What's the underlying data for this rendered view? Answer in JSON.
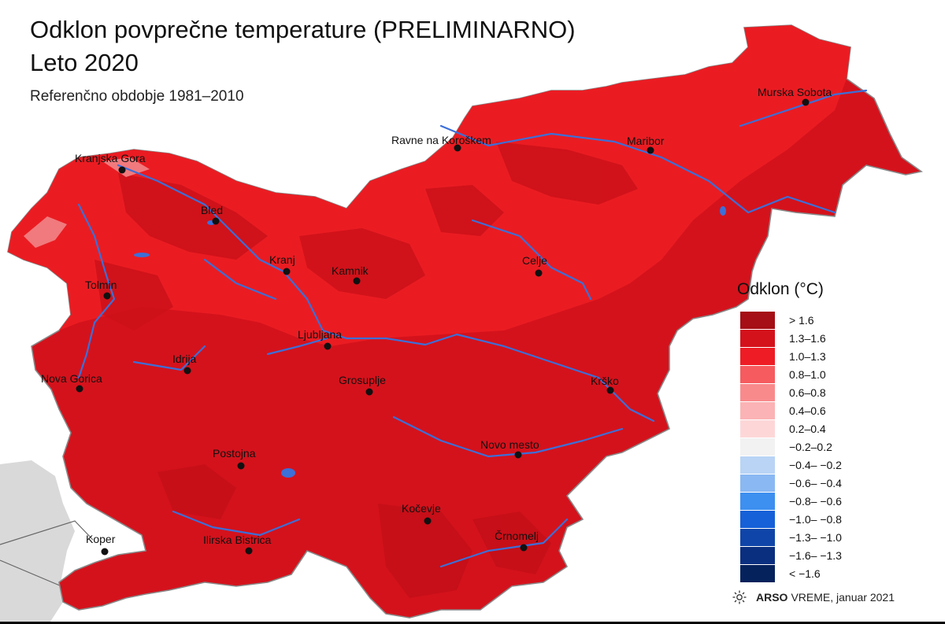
{
  "title_line1": "Odklon povprečne temperature (PRELIMINARNO)",
  "title_line2": "Leto 2020",
  "subtitle": "Referenčno obdobje 1981–2010",
  "colors": {
    "dominant_fill": "#d4121c",
    "north_fill": "#ea1c22",
    "ridge_fill": "#c50f18",
    "river": "#3c6fd8",
    "border": "#888888",
    "neighbor": "#d9d9d9"
  },
  "cities": [
    {
      "name": "Murska Sobota"
    },
    {
      "name": "Ravne na Koroškem"
    },
    {
      "name": "Maribor"
    },
    {
      "name": "Kranjska Gora"
    },
    {
      "name": "Bled"
    },
    {
      "name": "Kranj"
    },
    {
      "name": "Kamnik"
    },
    {
      "name": "Celje"
    },
    {
      "name": "Tolmin"
    },
    {
      "name": "Ljubljana"
    },
    {
      "name": "Idrija"
    },
    {
      "name": "Nova Gorica"
    },
    {
      "name": "Grosuplje"
    },
    {
      "name": "Krško"
    },
    {
      "name": "Novo mesto"
    },
    {
      "name": "Postojna"
    },
    {
      "name": "Kočevje"
    },
    {
      "name": "Koper"
    },
    {
      "name": "Ilirska Bistrica"
    },
    {
      "name": "Črnomelj"
    }
  ],
  "legend": {
    "title": "Odklon (°C)",
    "items": [
      {
        "label": "> 1.6",
        "color": "#a50f15"
      },
      {
        "label": "1.3–1.6",
        "color": "#d4121c"
      },
      {
        "label": "1.0–1.3",
        "color": "#ee1c24"
      },
      {
        "label": "0.8–1.0",
        "color": "#f65b5f"
      },
      {
        "label": "0.6–0.8",
        "color": "#f98a8c"
      },
      {
        "label": "0.4–0.6",
        "color": "#fbb3b5"
      },
      {
        "label": "0.2–0.4",
        "color": "#fdd7d8"
      },
      {
        "label": "−0.2–0.2",
        "color": "#f2f2f2"
      },
      {
        "label": "−0.4– −0.2",
        "color": "#b9d4f5"
      },
      {
        "label": "−0.6– −0.4",
        "color": "#8ab8f2"
      },
      {
        "label": "−0.8– −0.6",
        "color": "#3d8ff0"
      },
      {
        "label": "−1.0– −0.8",
        "color": "#1660d8"
      },
      {
        "label": "−1.3– −1.0",
        "color": "#0f45a8"
      },
      {
        "label": "−1.6– −1.3",
        "color": "#0a2f7f"
      },
      {
        "label": "< −1.6",
        "color": "#06225c"
      }
    ]
  },
  "footer": {
    "brand": "ARSO",
    "brand2": "VREME",
    "date": ", januar 2021"
  }
}
